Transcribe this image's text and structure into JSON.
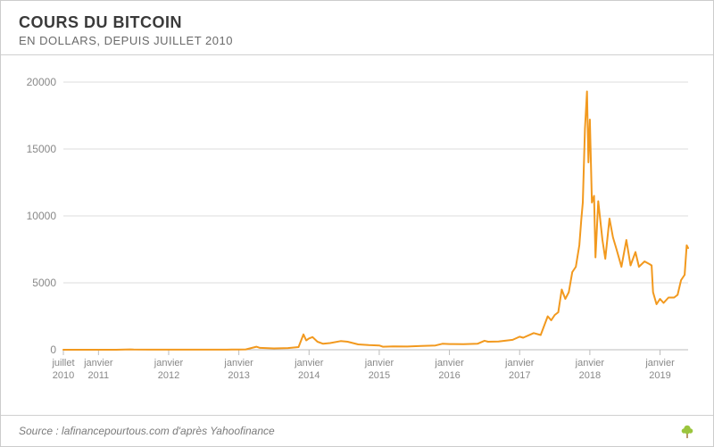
{
  "header": {
    "title": "COURS DU BITCOIN",
    "subtitle": "EN DOLLARS, DEPUIS JUILLET 2010"
  },
  "source": "Source : lafinancepourtous.com d'après Yahoofinance",
  "chart": {
    "type": "line",
    "background_color": "#ffffff",
    "grid_color": "#dcdcdc",
    "axis_color": "#bcbcbc",
    "line_color": "#f2991e",
    "line_width": 2,
    "label_color": "#888888",
    "label_fontsize": 12,
    "ylim": [
      0,
      20000
    ],
    "yticks": [
      0,
      5000,
      10000,
      15000,
      20000
    ],
    "x_start": 2010.5,
    "x_end": 2019.4,
    "xticks": [
      {
        "pos": 2010.5,
        "line1": "juillet",
        "line2": "2010"
      },
      {
        "pos": 2011.0,
        "line1": "janvier",
        "line2": "2011"
      },
      {
        "pos": 2012.0,
        "line1": "janvier",
        "line2": "2012"
      },
      {
        "pos": 2013.0,
        "line1": "janvier",
        "line2": "2013"
      },
      {
        "pos": 2014.0,
        "line1": "janvier",
        "line2": "2014"
      },
      {
        "pos": 2015.0,
        "line1": "janvier",
        "line2": "2015"
      },
      {
        "pos": 2016.0,
        "line1": "janvier",
        "line2": "2016"
      },
      {
        "pos": 2017.0,
        "line1": "janvier",
        "line2": "2017"
      },
      {
        "pos": 2018.0,
        "line1": "janvier",
        "line2": "2018"
      },
      {
        "pos": 2019.0,
        "line1": "janvier",
        "line2": "2019"
      }
    ],
    "series": [
      {
        "x": 2010.5,
        "y": 0
      },
      {
        "x": 2010.75,
        "y": 0
      },
      {
        "x": 2011.0,
        "y": 0
      },
      {
        "x": 2011.25,
        "y": 1
      },
      {
        "x": 2011.45,
        "y": 30
      },
      {
        "x": 2011.5,
        "y": 15
      },
      {
        "x": 2011.75,
        "y": 5
      },
      {
        "x": 2012.0,
        "y": 5
      },
      {
        "x": 2012.5,
        "y": 8
      },
      {
        "x": 2012.9,
        "y": 13
      },
      {
        "x": 2013.0,
        "y": 14
      },
      {
        "x": 2013.1,
        "y": 30
      },
      {
        "x": 2013.25,
        "y": 230
      },
      {
        "x": 2013.3,
        "y": 140
      },
      {
        "x": 2013.5,
        "y": 100
      },
      {
        "x": 2013.7,
        "y": 130
      },
      {
        "x": 2013.85,
        "y": 200
      },
      {
        "x": 2013.92,
        "y": 1150
      },
      {
        "x": 2013.96,
        "y": 700
      },
      {
        "x": 2014.0,
        "y": 850
      },
      {
        "x": 2014.05,
        "y": 950
      },
      {
        "x": 2014.12,
        "y": 600
      },
      {
        "x": 2014.2,
        "y": 450
      },
      {
        "x": 2014.3,
        "y": 500
      },
      {
        "x": 2014.45,
        "y": 650
      },
      {
        "x": 2014.55,
        "y": 600
      },
      {
        "x": 2014.7,
        "y": 400
      },
      {
        "x": 2014.85,
        "y": 350
      },
      {
        "x": 2015.0,
        "y": 320
      },
      {
        "x": 2015.05,
        "y": 230
      },
      {
        "x": 2015.2,
        "y": 250
      },
      {
        "x": 2015.4,
        "y": 240
      },
      {
        "x": 2015.6,
        "y": 280
      },
      {
        "x": 2015.8,
        "y": 320
      },
      {
        "x": 2015.9,
        "y": 450
      },
      {
        "x": 2016.0,
        "y": 430
      },
      {
        "x": 2016.2,
        "y": 420
      },
      {
        "x": 2016.4,
        "y": 450
      },
      {
        "x": 2016.5,
        "y": 670
      },
      {
        "x": 2016.55,
        "y": 600
      },
      {
        "x": 2016.7,
        "y": 620
      },
      {
        "x": 2016.9,
        "y": 740
      },
      {
        "x": 2017.0,
        "y": 970
      },
      {
        "x": 2017.05,
        "y": 900
      },
      {
        "x": 2017.2,
        "y": 1250
      },
      {
        "x": 2017.3,
        "y": 1100
      },
      {
        "x": 2017.4,
        "y": 2500
      },
      {
        "x": 2017.45,
        "y": 2200
      },
      {
        "x": 2017.5,
        "y": 2600
      },
      {
        "x": 2017.55,
        "y": 2800
      },
      {
        "x": 2017.6,
        "y": 4500
      },
      {
        "x": 2017.65,
        "y": 3800
      },
      {
        "x": 2017.7,
        "y": 4300
      },
      {
        "x": 2017.75,
        "y": 5800
      },
      {
        "x": 2017.8,
        "y": 6200
      },
      {
        "x": 2017.85,
        "y": 7800
      },
      {
        "x": 2017.88,
        "y": 9800
      },
      {
        "x": 2017.9,
        "y": 11000
      },
      {
        "x": 2017.93,
        "y": 16500
      },
      {
        "x": 2017.96,
        "y": 19300
      },
      {
        "x": 2017.98,
        "y": 14000
      },
      {
        "x": 2018.0,
        "y": 17200
      },
      {
        "x": 2018.03,
        "y": 11000
      },
      {
        "x": 2018.06,
        "y": 11500
      },
      {
        "x": 2018.08,
        "y": 6900
      },
      {
        "x": 2018.12,
        "y": 11100
      },
      {
        "x": 2018.18,
        "y": 8200
      },
      {
        "x": 2018.22,
        "y": 6800
      },
      {
        "x": 2018.28,
        "y": 9800
      },
      {
        "x": 2018.33,
        "y": 8400
      },
      {
        "x": 2018.38,
        "y": 7500
      },
      {
        "x": 2018.45,
        "y": 6200
      },
      {
        "x": 2018.52,
        "y": 8200
      },
      {
        "x": 2018.58,
        "y": 6300
      },
      {
        "x": 2018.65,
        "y": 7300
      },
      {
        "x": 2018.7,
        "y": 6200
      },
      {
        "x": 2018.78,
        "y": 6600
      },
      {
        "x": 2018.85,
        "y": 6400
      },
      {
        "x": 2018.88,
        "y": 6300
      },
      {
        "x": 2018.9,
        "y": 4300
      },
      {
        "x": 2018.95,
        "y": 3400
      },
      {
        "x": 2019.0,
        "y": 3800
      },
      {
        "x": 2019.05,
        "y": 3500
      },
      {
        "x": 2019.12,
        "y": 3900
      },
      {
        "x": 2019.2,
        "y": 3900
      },
      {
        "x": 2019.25,
        "y": 4100
      },
      {
        "x": 2019.3,
        "y": 5200
      },
      {
        "x": 2019.35,
        "y": 5600
      },
      {
        "x": 2019.38,
        "y": 7800
      },
      {
        "x": 2019.4,
        "y": 7600
      }
    ]
  },
  "logo": {
    "leaf_color": "#9bc53d",
    "trunk_color": "#b08a5a"
  }
}
